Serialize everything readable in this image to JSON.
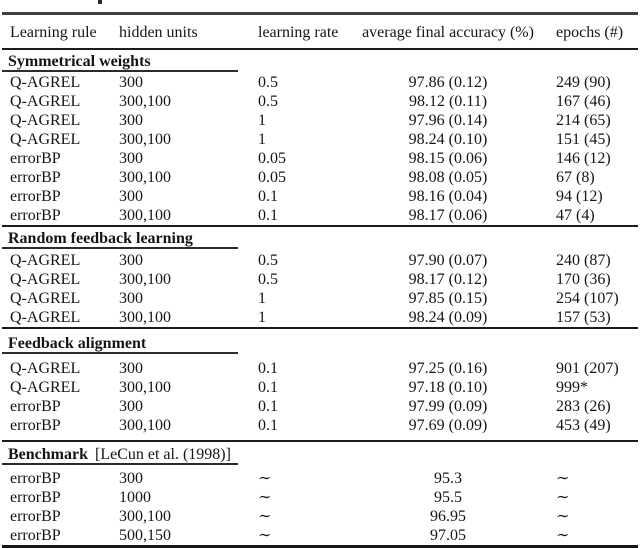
{
  "table": {
    "columns": [
      "Learning rule",
      "hidden units",
      "learning rate",
      "average final accuracy (%)",
      "epochs (#)"
    ],
    "sections": [
      {
        "title": "Symmetrical weights",
        "title_suffix": "",
        "rows": [
          [
            "Q-AGREL",
            "300",
            "0.5",
            "97.86 (0.12)",
            "249 (90)"
          ],
          [
            "Q-AGREL",
            "300,100",
            "0.5",
            "98.12 (0.11)",
            "167 (46)"
          ],
          [
            "Q-AGREL",
            "300",
            "1",
            "97.96 (0.14)",
            "214 (65)"
          ],
          [
            "Q-AGREL",
            "300,100",
            "1",
            "98.24 (0.10)",
            "151 (45)"
          ],
          [
            "errorBP",
            "300",
            "0.05",
            "98.15 (0.06)",
            "146 (12)"
          ],
          [
            "errorBP",
            "300,100",
            "0.05",
            "98.08 (0.05)",
            "67 (8)"
          ],
          [
            "errorBP",
            "300",
            "0.1",
            "98.16 (0.04)",
            "94 (12)"
          ],
          [
            "errorBP",
            "300,100",
            "0.1",
            "98.17 (0.06)",
            "47 (4)"
          ]
        ]
      },
      {
        "title": "Random feedback learning",
        "title_suffix": "",
        "rows": [
          [
            "Q-AGREL",
            "300",
            "0.5",
            "97.90 (0.07)",
            "240 (87)"
          ],
          [
            "Q-AGREL",
            "300,100",
            "0.5",
            "98.17 (0.12)",
            "170 (36)"
          ],
          [
            "Q-AGREL",
            "300",
            "1",
            "97.85 (0.15)",
            "254 (107)"
          ],
          [
            "Q-AGREL",
            "300,100",
            "1",
            "98.24 (0.09)",
            "157 (53)"
          ]
        ]
      },
      {
        "title": "Feedback alignment",
        "title_suffix": "",
        "rows": [
          [
            "Q-AGREL",
            "300",
            "0.1",
            "97.25 (0.16)",
            "901 (207)"
          ],
          [
            "Q-AGREL",
            "300,100",
            "0.1",
            "97.18 (0.10)",
            "999*"
          ],
          [
            "errorBP",
            "300",
            "0.1",
            "97.99 (0.09)",
            "283 (26)"
          ],
          [
            "errorBP",
            "300,100",
            "0.1",
            "97.69 (0.09)",
            "453 (49)"
          ]
        ]
      },
      {
        "title": "Benchmark",
        "title_suffix": "[LeCun et al. (1998)]",
        "rows": [
          [
            "errorBP",
            "300",
            "∼",
            "95.3",
            "∼"
          ],
          [
            "errorBP",
            "1000",
            "∼",
            "95.5",
            "∼"
          ],
          [
            "errorBP",
            "300,100",
            "∼",
            "96.95",
            "∼"
          ],
          [
            "errorBP",
            "500,150",
            "∼",
            "97.05",
            "∼"
          ]
        ]
      }
    ]
  },
  "colors": {
    "text": "#151515",
    "top_rule": "#3f3f3f",
    "thin_rule": "#1c1c1c",
    "bottom_rule": "#191919",
    "background": "#ffffff"
  }
}
